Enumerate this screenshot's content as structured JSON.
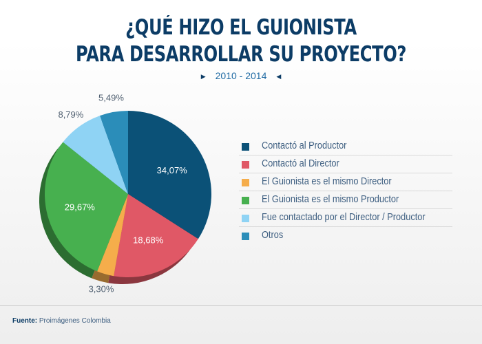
{
  "header": {
    "title_line1": "¿QUÉ HIZO EL GUIONISTA",
    "title_line2": "PARA DESARROLLAR SU PROYECTO?",
    "period": "2010 - 2014"
  },
  "chart_data": {
    "type": "pie",
    "title": "¿QUÉ HIZO EL GUIONISTA PARA DESARROLLAR SU PROYECTO?",
    "subtitle": "2010 - 2014",
    "categories": [
      "Contactó al Productor",
      "Contactó al Director",
      "El Guionista es el mismo Director",
      "El Guionista es el mismo Productor",
      "Fue contactado por el Director / Productor",
      "Otros"
    ],
    "values": [
      34.07,
      18.68,
      3.3,
      29.67,
      8.79,
      5.49
    ],
    "value_labels": [
      "34,07%",
      "18,68%",
      "3,30%",
      "29,67%",
      "8,79%",
      "5,49%"
    ],
    "colors": [
      "#0b5177",
      "#e05866",
      "#f5ad4b",
      "#47b04f",
      "#8fd3f4",
      "#2b8db9"
    ],
    "label_placement": [
      "inside",
      "inside",
      "outside",
      "inside",
      "outside",
      "outside"
    ],
    "legend_position": "right"
  },
  "source": {
    "prefix": "Fuente:",
    "text": "Proimágenes Colombia"
  }
}
